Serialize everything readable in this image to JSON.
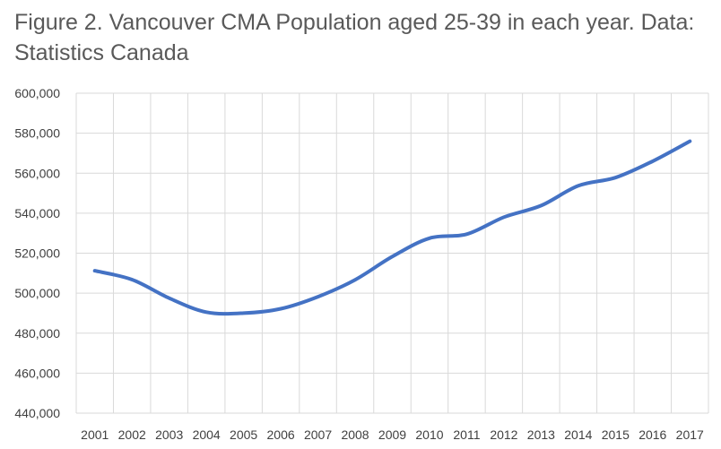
{
  "chart_data": {
    "type": "line",
    "title": "Figure 2. Vancouver CMA Population aged 25-39 in each year. Data: Statistics Canada",
    "xlabel": "",
    "ylabel": "",
    "categories": [
      "2001",
      "2002",
      "2003",
      "2004",
      "2005",
      "2006",
      "2007",
      "2008",
      "2009",
      "2010",
      "2011",
      "2012",
      "2013",
      "2014",
      "2015",
      "2016",
      "2017"
    ],
    "series": [
      {
        "values": [
          511200,
          506800,
          497500,
          490500,
          490000,
          492200,
          498200,
          506700,
          518300,
          527500,
          529500,
          538000,
          543800,
          553700,
          557800,
          566000,
          576000
        ]
      }
    ],
    "ylim": [
      440000,
      600000
    ],
    "yticks": [
      "440,000",
      "460,000",
      "480,000",
      "500,000",
      "520,000",
      "540,000",
      "560,000",
      "580,000",
      "600,000"
    ],
    "ytick_values": [
      440000,
      460000,
      480000,
      500000,
      520000,
      540000,
      560000,
      580000,
      600000
    ],
    "grid": true,
    "legend": "none",
    "line_color": "#4472C4",
    "grid_color": "#D9D9D9"
  }
}
